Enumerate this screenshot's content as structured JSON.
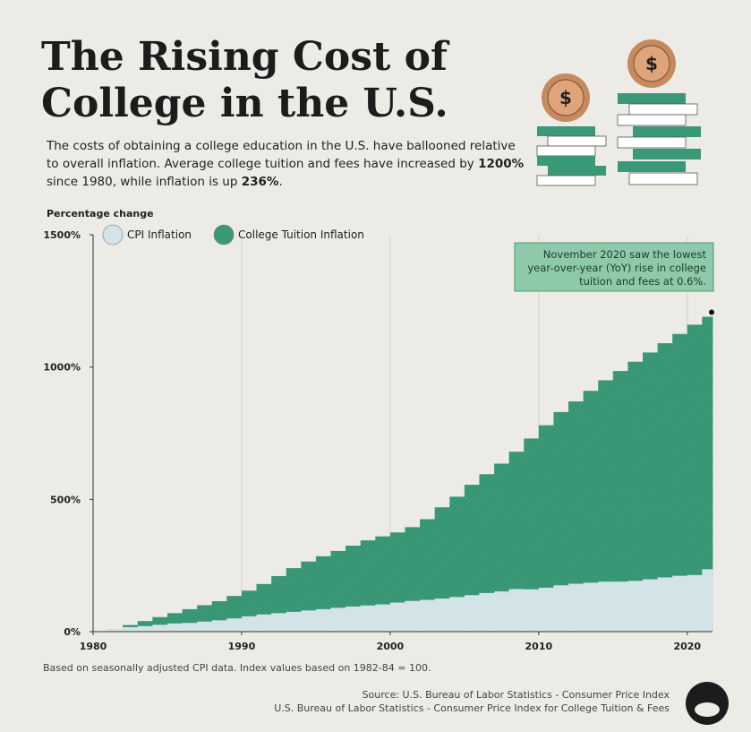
{
  "chart_data": {
    "type": "step_area",
    "title": [
      "The Rising Cost of",
      "College in the U.S."
    ],
    "subtitle": [
      [
        {
          "text": "The costs of obtaining a college education in the U.S. have ballooned relative",
          "bold": false
        }
      ],
      [
        {
          "text": "to overall inflation. Average college tuition and fees have increased by ",
          "bold": false
        },
        {
          "text": "1200%",
          "bold": true
        }
      ],
      [
        {
          "text": "since 1980, while inflation is up ",
          "bold": false
        },
        {
          "text": "236%",
          "bold": true
        },
        {
          "text": ".",
          "bold": false
        }
      ]
    ],
    "y_label": "Percentage change",
    "legend": "upper left",
    "x": [
      1980,
      1981,
      1982,
      1983,
      1984,
      1985,
      1986,
      1987,
      1988,
      1989,
      1990,
      1991,
      1992,
      1993,
      1994,
      1995,
      1996,
      1997,
      1998,
      1999,
      2000,
      2001,
      2002,
      2003,
      2004,
      2005,
      2006,
      2007,
      2008,
      2009,
      2010,
      2011,
      2012,
      2013,
      2014,
      2015,
      2016,
      2017,
      2018,
      2019,
      2020,
      2021
    ],
    "series": [
      {
        "name": "CPI Inflation",
        "color": "#d3e3e7",
        "values": [
          0,
          10,
          17,
          21,
          26,
          31,
          33,
          38,
          43,
          50,
          58,
          65,
          70,
          75,
          80,
          85,
          90,
          95,
          99,
          103,
          110,
          116,
          120,
          125,
          131,
          138,
          146,
          152,
          161,
          160,
          166,
          175,
          181,
          185,
          189,
          189,
          192,
          198,
          205,
          211,
          214,
          236
        ]
      },
      {
        "name": "College Tuition Inflation",
        "color": "#3a9a78",
        "values": [
          0,
          10,
          25,
          40,
          55,
          70,
          85,
          100,
          115,
          135,
          155,
          180,
          210,
          240,
          265,
          285,
          305,
          325,
          345,
          360,
          375,
          395,
          425,
          470,
          510,
          555,
          595,
          635,
          680,
          730,
          780,
          830,
          870,
          910,
          950,
          985,
          1020,
          1055,
          1090,
          1125,
          1160,
          1190
        ]
      }
    ],
    "xlim": [
      1980,
      2021.7
    ],
    "xticks": [
      1980,
      1990,
      2000,
      2010,
      2020
    ],
    "ylim": [
      0,
      1500
    ],
    "yticks": [
      {
        "value": 0,
        "label": "0%"
      },
      {
        "value": 500,
        "label": "500%"
      },
      {
        "value": 1000,
        "label": "1000%"
      },
      {
        "value": 1500,
        "label": "1500%"
      }
    ],
    "grid": true,
    "annotation": [
      "November 2020 saw the lowest",
      "year-over-year (YoY) rise in college",
      "tuition and fees at 0.6%."
    ],
    "footnote": "Based on seasonally adjusted CPI data. Index values based on 1982-84 = 100.",
    "source": [
      "Source: U.S. Bureau of Labor Statistics - Consumer Price Index",
      "U.S. Bureau of Labor Statistics - Consumer Price Index for College Tuition & Fees"
    ]
  }
}
